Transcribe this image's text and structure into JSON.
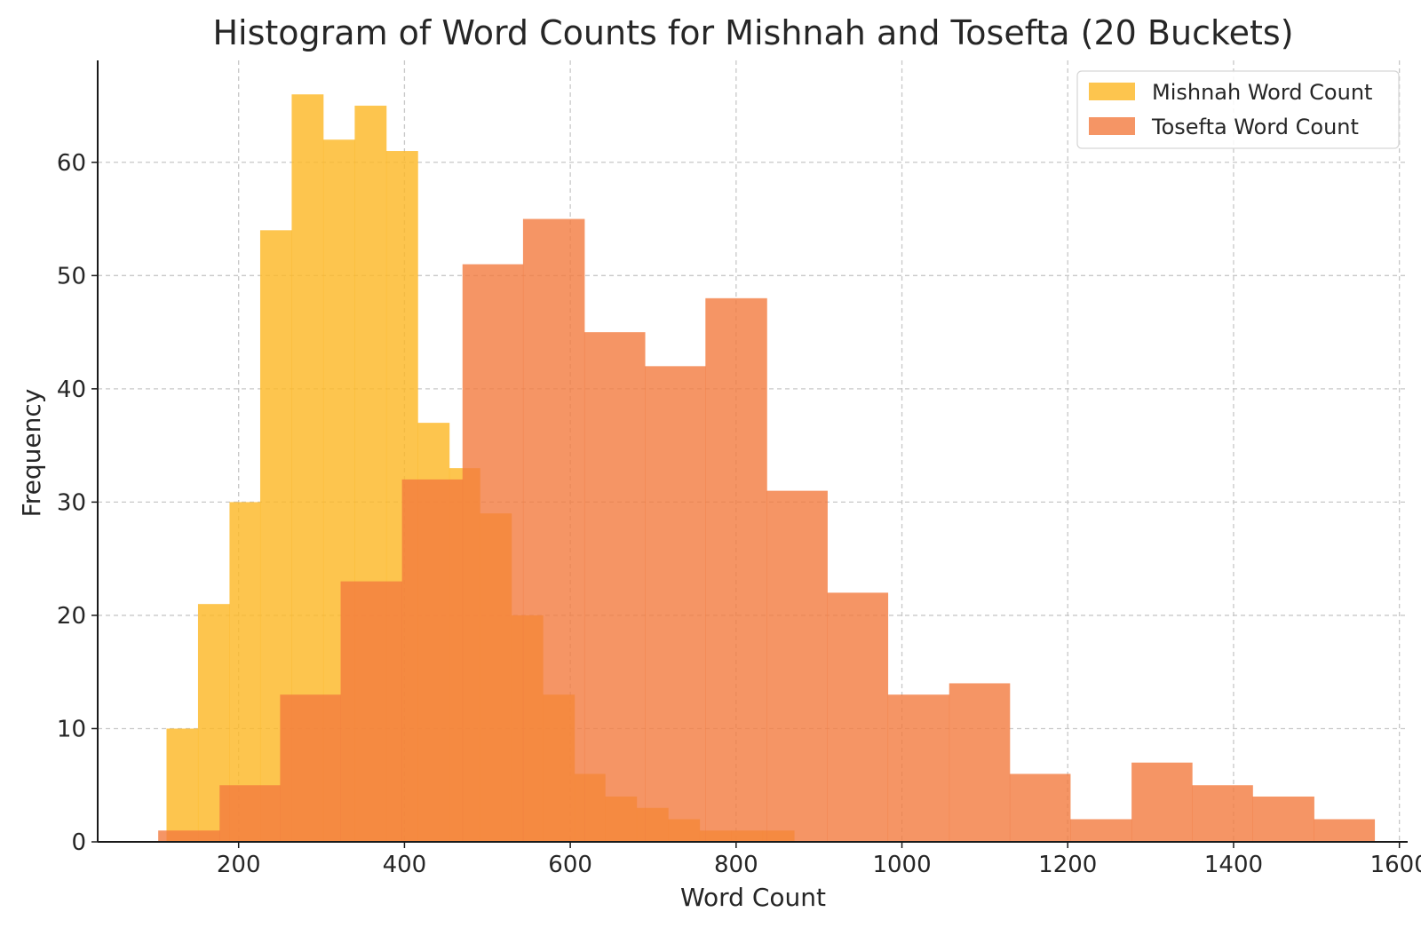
{
  "chart_data": {
    "type": "bar",
    "title": "Histogram of Word Counts for Mishnah and Tosefta (20 Buckets)",
    "xlabel": "Word Count",
    "ylabel": "Frequency",
    "xlim": [
      30,
      1610
    ],
    "ylim": [
      0,
      69
    ],
    "xticks": [
      200,
      400,
      600,
      800,
      1000,
      1200,
      1400,
      1600
    ],
    "yticks": [
      0,
      10,
      20,
      30,
      40,
      50,
      60
    ],
    "grid": true,
    "legend_position": "top-right",
    "series": [
      {
        "name": "Mishnah Word Count",
        "color": "#fdb827",
        "opacity": 0.82,
        "bin_edges": [
          113,
          151,
          189,
          226,
          264,
          302,
          340,
          378,
          416,
          454,
          491,
          529,
          567,
          605,
          642,
          680,
          718,
          756,
          794,
          832,
          870
        ],
        "values": [
          10,
          21,
          30,
          54,
          66,
          62,
          65,
          61,
          37,
          33,
          29,
          20,
          13,
          6,
          4,
          3,
          2,
          1,
          1,
          1
        ]
      },
      {
        "name": "Tosefta Word Count",
        "color": "#f27a3f",
        "opacity": 0.8,
        "bin_edges": [
          103,
          177,
          250,
          323,
          397,
          470,
          543,
          617,
          690,
          763,
          837,
          910,
          983,
          1057,
          1130,
          1203,
          1277,
          1350,
          1423,
          1497,
          1570
        ],
        "values": [
          1,
          5,
          13,
          23,
          32,
          51,
          55,
          45,
          42,
          48,
          31,
          22,
          13,
          14,
          6,
          2,
          7,
          5,
          4,
          2
        ]
      }
    ]
  }
}
